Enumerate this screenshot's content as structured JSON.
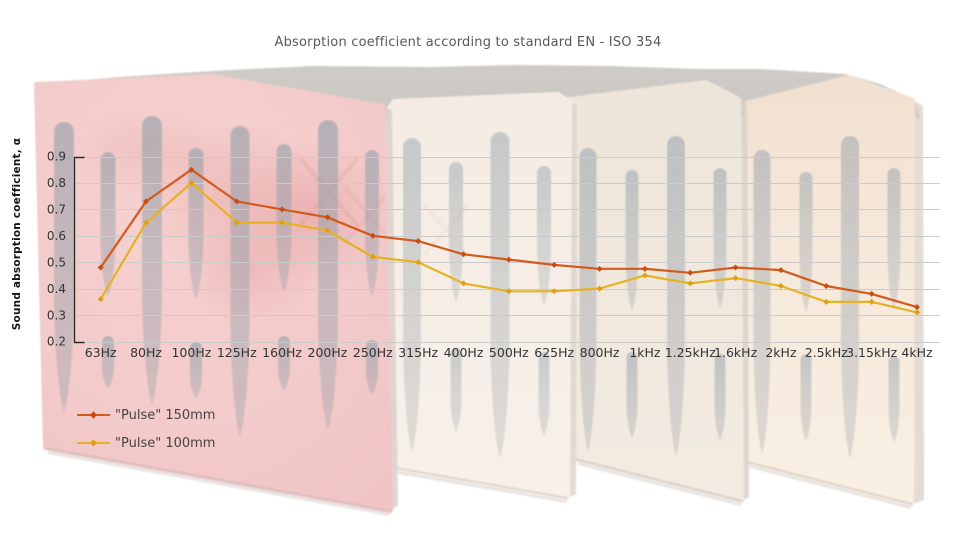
{
  "chart_data": {
    "type": "line",
    "title": "Absorption coefficient according to standard EN - ISO 354",
    "ylabel": "Sound absorption coefficient, α",
    "xlabel": "",
    "categories": [
      "63Hz",
      "80Hz",
      "100Hz",
      "125Hz",
      "160Hz",
      "200Hz",
      "250Hz",
      "315Hz",
      "400Hz",
      "500Hz",
      "625Hz",
      "800Hz",
      "1kHz",
      "1.25kHz",
      "1.6kHz",
      "2kHz",
      "2.5kHz",
      "3.15kHz",
      "4kHz"
    ],
    "ylim": [
      0.2,
      0.9
    ],
    "yticks": [
      "0.9",
      "0.8",
      "0.7",
      "0.6",
      "0.5",
      "0.4",
      "0.3",
      "0.2"
    ],
    "grid": true,
    "legend_position": "bottom-left",
    "series": [
      {
        "name": "\"Pulse\" 150mm",
        "color": "#d35a1c",
        "marker_color": "#c74d12",
        "values": [
          0.48,
          0.73,
          0.85,
          0.73,
          0.7,
          0.67,
          0.6,
          0.58,
          0.53,
          0.51,
          0.49,
          0.475,
          0.475,
          0.46,
          0.48,
          0.47,
          0.41,
          0.38,
          0.33
        ]
      },
      {
        "name": "\"Pulse\" 100mm",
        "color": "#e6b223",
        "marker_color": "#dda014",
        "values": [
          0.36,
          0.65,
          0.8,
          0.65,
          0.65,
          0.62,
          0.52,
          0.5,
          0.42,
          0.39,
          0.39,
          0.4,
          0.45,
          0.42,
          0.44,
          0.41,
          0.35,
          0.35,
          0.31
        ]
      }
    ]
  },
  "colors": {
    "title": "#4f4f4f",
    "axis": "#2b2b2b",
    "tick_label": "#333333",
    "grid": "#cbcbcb",
    "legend_text": "#4a4242"
  }
}
